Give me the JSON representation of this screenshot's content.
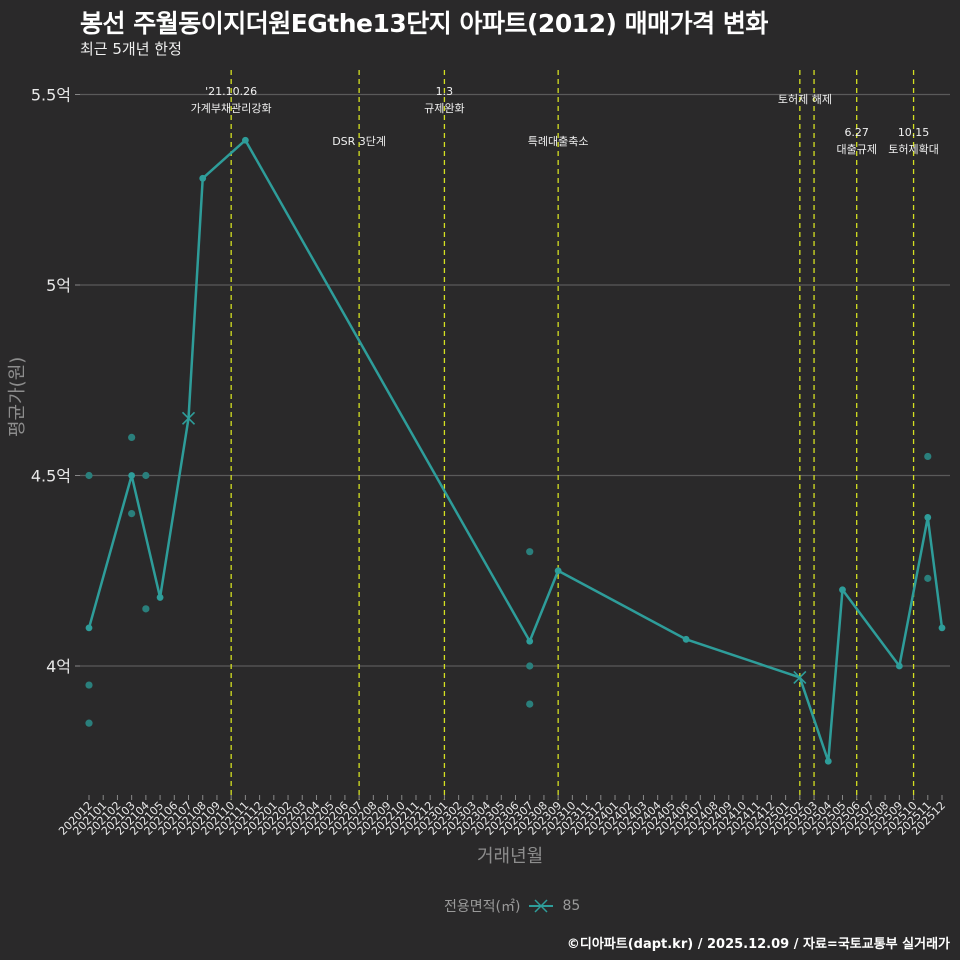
{
  "header": {
    "title": "봉선 주월동이지더원EGthe13단지 아파트(2012) 매매가격 변화",
    "subtitle": "최근 5개년 한정"
  },
  "footer": {
    "caption": "©디아파트(dapt.kr) / 2025.12.09 / 자료=국토교통부 실거래가"
  },
  "legend": {
    "title": "전용면적(㎡)",
    "items": [
      {
        "label": "85",
        "color": "#2e9d9a",
        "marker": "x-line"
      }
    ]
  },
  "colors": {
    "background": "#2a292a",
    "series": "#2e9d9a",
    "scatter": "#2a7f7c",
    "event_line": "#d4e021",
    "gridline": "#5a5a5a"
  },
  "chart_data": {
    "type": "line",
    "title": "봉선 주월동이지더원EGthe13단지 아파트(2012) 매매가격 변화",
    "subtitle": "최근 5개년 한정",
    "xlabel": "거래년월",
    "ylabel": "평균가(원)",
    "ylim": [
      3.65,
      5.55
    ],
    "y_ticks": [
      {
        "value": 4.0,
        "label": "4억"
      },
      {
        "value": 4.5,
        "label": "4.5억"
      },
      {
        "value": 5.0,
        "label": "5억"
      },
      {
        "value": 5.5,
        "label": "5.5억"
      }
    ],
    "x_categories": [
      "202012",
      "202101",
      "202102",
      "202103",
      "202104",
      "202105",
      "202106",
      "202107",
      "202108",
      "202109",
      "202110",
      "202111",
      "202112",
      "202201",
      "202202",
      "202203",
      "202204",
      "202205",
      "202206",
      "202207",
      "202208",
      "202209",
      "202210",
      "202211",
      "202212",
      "202301",
      "202302",
      "202303",
      "202304",
      "202305",
      "202306",
      "202307",
      "202308",
      "202309",
      "202310",
      "202311",
      "202312",
      "202401",
      "202402",
      "202403",
      "202404",
      "202405",
      "202406",
      "202407",
      "202408",
      "202409",
      "202410",
      "202411",
      "202412",
      "202501",
      "202502",
      "202503",
      "202504",
      "202505",
      "202506",
      "202507",
      "202508",
      "202509",
      "202510",
      "202511",
      "202512"
    ],
    "grid": true,
    "legend_position": "bottom",
    "series": [
      {
        "name": "85",
        "unit": "억원",
        "points": [
          {
            "x": "202012",
            "y": 4.1
          },
          {
            "x": "202103",
            "y": 4.5
          },
          {
            "x": "202105",
            "y": 4.18
          },
          {
            "x": "202107",
            "y": 4.65,
            "marker": "x"
          },
          {
            "x": "202108",
            "y": 5.28
          },
          {
            "x": "202111",
            "y": 5.38
          },
          {
            "x": "202307",
            "y": 4.065
          },
          {
            "x": "202309",
            "y": 4.25
          },
          {
            "x": "202406",
            "y": 4.07
          },
          {
            "x": "202502",
            "y": 3.97,
            "marker": "x"
          },
          {
            "x": "202504",
            "y": 3.75
          },
          {
            "x": "202505",
            "y": 4.2
          },
          {
            "x": "202509",
            "y": 4.0
          },
          {
            "x": "202511",
            "y": 4.39
          },
          {
            "x": "202512",
            "y": 4.1
          }
        ]
      }
    ],
    "scatter_points": [
      {
        "x": "202012",
        "y": 4.5
      },
      {
        "x": "202012",
        "y": 3.95
      },
      {
        "x": "202012",
        "y": 3.85
      },
      {
        "x": "202103",
        "y": 4.6
      },
      {
        "x": "202103",
        "y": 4.4
      },
      {
        "x": "202104",
        "y": 4.5
      },
      {
        "x": "202104",
        "y": 4.15
      },
      {
        "x": "202307",
        "y": 4.3
      },
      {
        "x": "202307",
        "y": 4.0
      },
      {
        "x": "202307",
        "y": 3.9
      },
      {
        "x": "202511",
        "y": 4.55
      },
      {
        "x": "202511",
        "y": 4.23
      }
    ],
    "annotations": [
      {
        "x": "202110",
        "lines": [
          "'21.10.26",
          "가계부채관리강화"
        ],
        "row": 0
      },
      {
        "x": "202207",
        "lines": [
          "DSR 3단계"
        ],
        "row": 1
      },
      {
        "x": "202301",
        "lines": [
          "1.3",
          "규제완화"
        ],
        "row": 0
      },
      {
        "x": "202309",
        "lines": [
          "특례대출축소"
        ],
        "row": 1
      },
      {
        "x": "202502",
        "lines": [],
        "row": 0
      },
      {
        "x": "202503",
        "lines": [
          "토허제 해제"
        ],
        "row": 0,
        "center_x": "202502.5"
      },
      {
        "x": "202506",
        "lines": [
          "6.27",
          "대출규제"
        ],
        "row": 1
      },
      {
        "x": "202510",
        "lines": [
          "10.15",
          "토허제확대"
        ],
        "row": 1
      }
    ]
  }
}
